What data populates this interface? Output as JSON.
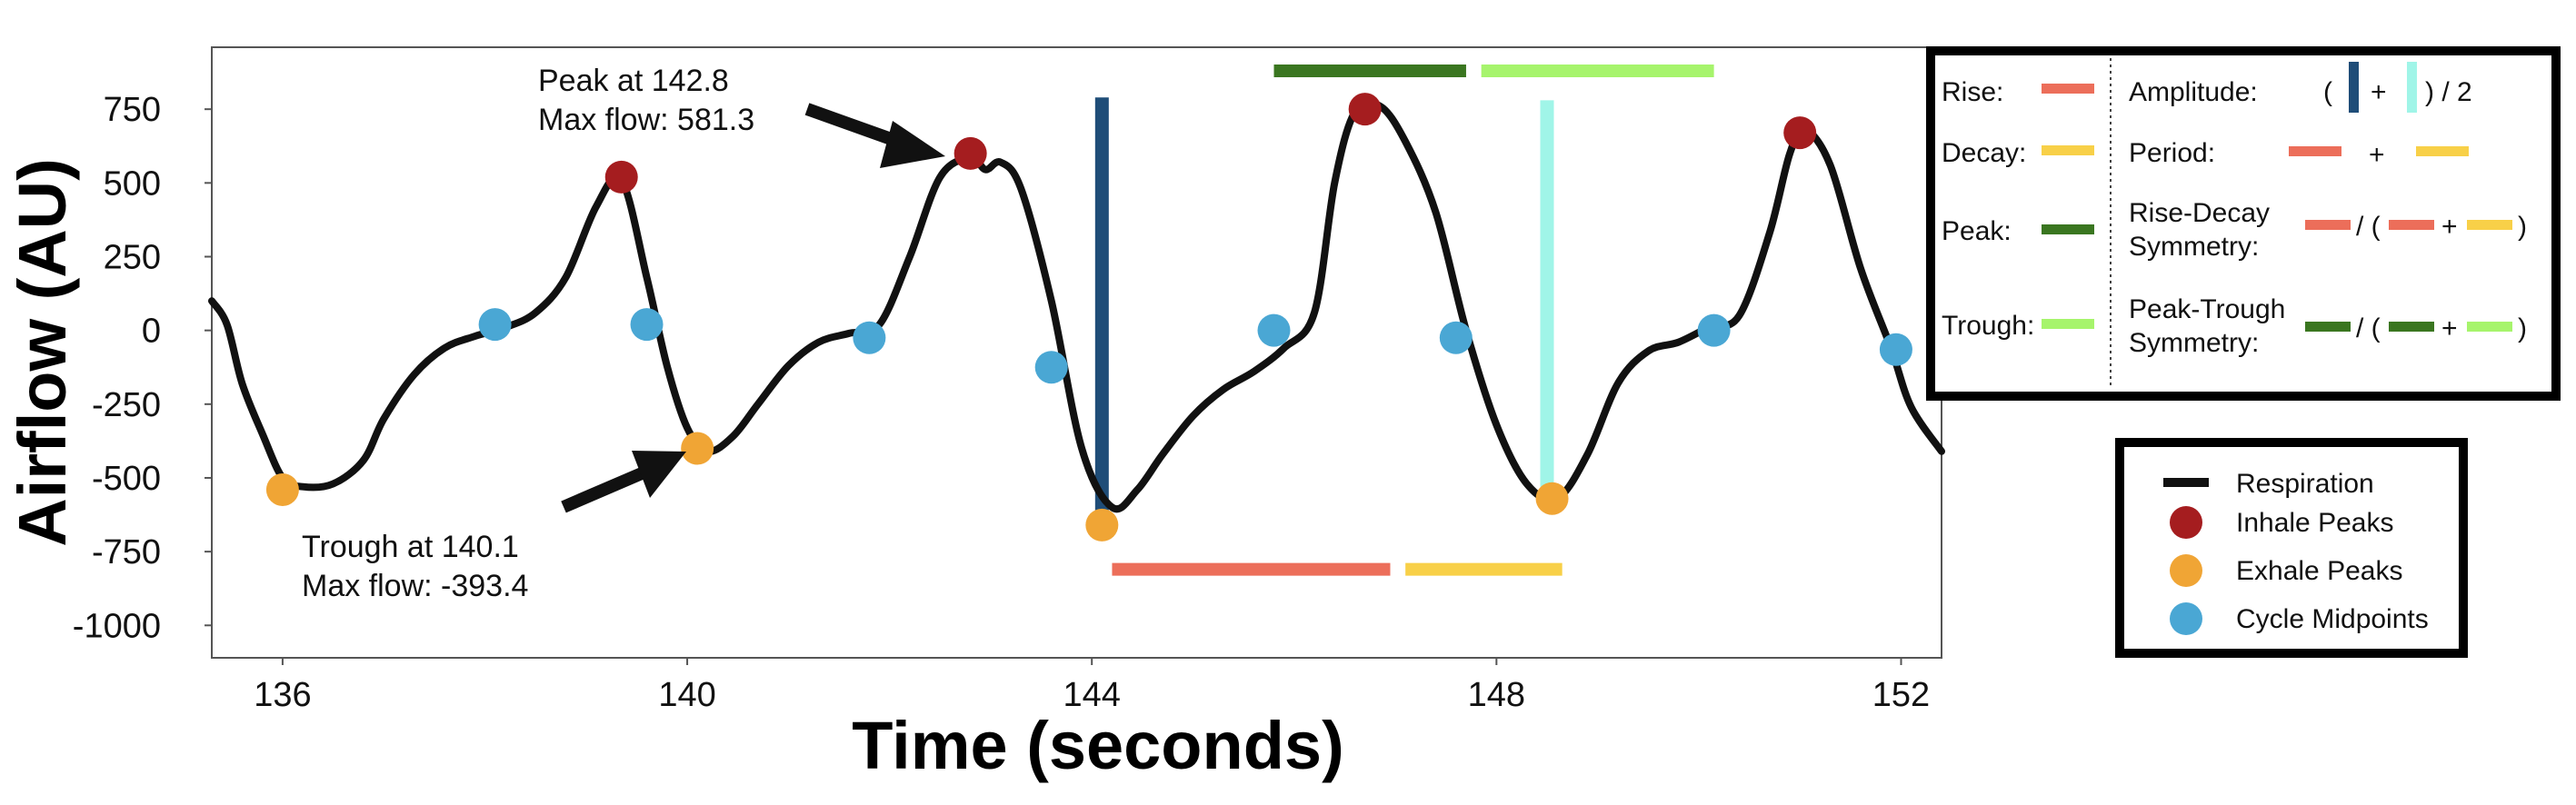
{
  "chart_data": {
    "type": "line",
    "xlabel": "Time (seconds)",
    "ylabel": "Airflow (AU)",
    "xlim": [
      135.3,
      152.4
    ],
    "ylim": [
      -1110,
      960
    ],
    "x_ticks": [
      136,
      140,
      144,
      148,
      152
    ],
    "y_ticks": [
      750,
      500,
      250,
      0,
      -250,
      -500,
      -750,
      -1000
    ],
    "grid": false,
    "series": [
      {
        "name": "Respiration",
        "color": "#111111",
        "points": [
          [
            135.3,
            100
          ],
          [
            135.45,
            20
          ],
          [
            135.6,
            -180
          ],
          [
            135.8,
            -350
          ],
          [
            136.0,
            -500
          ],
          [
            136.2,
            -530
          ],
          [
            136.5,
            -520
          ],
          [
            136.8,
            -440
          ],
          [
            137.0,
            -300
          ],
          [
            137.3,
            -150
          ],
          [
            137.6,
            -60
          ],
          [
            137.9,
            -20
          ],
          [
            138.2,
            10
          ],
          [
            138.5,
            60
          ],
          [
            138.8,
            180
          ],
          [
            139.1,
            420
          ],
          [
            139.35,
            510
          ],
          [
            139.6,
            180
          ],
          [
            139.8,
            -120
          ],
          [
            140.0,
            -330
          ],
          [
            140.2,
            -410
          ],
          [
            140.45,
            -360
          ],
          [
            140.7,
            -250
          ],
          [
            141.0,
            -120
          ],
          [
            141.3,
            -40
          ],
          [
            141.6,
            -10
          ],
          [
            141.9,
            20
          ],
          [
            142.2,
            250
          ],
          [
            142.5,
            520
          ],
          [
            142.8,
            585
          ],
          [
            142.95,
            545
          ],
          [
            143.1,
            570
          ],
          [
            143.3,
            480
          ],
          [
            143.6,
            100
          ],
          [
            143.9,
            -400
          ],
          [
            144.2,
            -600
          ],
          [
            144.45,
            -540
          ],
          [
            144.7,
            -420
          ],
          [
            145.0,
            -290
          ],
          [
            145.3,
            -200
          ],
          [
            145.6,
            -140
          ],
          [
            145.9,
            -60
          ],
          [
            146.2,
            60
          ],
          [
            146.4,
            500
          ],
          [
            146.6,
            740
          ],
          [
            146.85,
            760
          ],
          [
            147.1,
            640
          ],
          [
            147.4,
            400
          ],
          [
            147.7,
            0
          ],
          [
            148.0,
            -320
          ],
          [
            148.3,
            -520
          ],
          [
            148.6,
            -570
          ],
          [
            148.9,
            -420
          ],
          [
            149.2,
            -180
          ],
          [
            149.5,
            -70
          ],
          [
            149.8,
            -40
          ],
          [
            150.1,
            10
          ],
          [
            150.4,
            50
          ],
          [
            150.7,
            330
          ],
          [
            150.9,
            600
          ],
          [
            151.05,
            680
          ],
          [
            151.3,
            560
          ],
          [
            151.6,
            210
          ],
          [
            151.9,
            -60
          ],
          [
            152.1,
            -260
          ],
          [
            152.4,
            -410
          ]
        ]
      },
      {
        "name": "Inhale Peaks",
        "color": "#a51d1f",
        "points": [
          [
            139.35,
            520
          ],
          [
            142.8,
            600
          ],
          [
            146.7,
            750
          ],
          [
            151.0,
            670
          ]
        ]
      },
      {
        "name": "Exhale Peaks",
        "color": "#f0a535",
        "points": [
          [
            136.0,
            -540
          ],
          [
            140.1,
            -400
          ],
          [
            144.1,
            -660
          ],
          [
            148.55,
            -570
          ]
        ]
      },
      {
        "name": "Cycle Midpoints",
        "color": "#4aa7d4",
        "points": [
          [
            138.1,
            20
          ],
          [
            139.6,
            20
          ],
          [
            141.8,
            -25
          ],
          [
            143.6,
            -125
          ],
          [
            145.8,
            0
          ],
          [
            147.6,
            -25
          ],
          [
            150.15,
            0
          ],
          [
            151.95,
            -65
          ]
        ]
      }
    ],
    "segments": [
      {
        "name": "Amplitude",
        "color": "#1f4d78",
        "x1": 144.1,
        "y1": 790,
        "x2": 144.1,
        "y2": -610
      },
      {
        "name": "Amplitude",
        "color": "#a0f5e8",
        "x1": 148.5,
        "y1": 780,
        "x2": 148.5,
        "y2": -530
      },
      {
        "name": "Rise",
        "color": "#ec6e5a",
        "x1": 144.2,
        "y1": -810,
        "x2": 146.95,
        "y2": -810
      },
      {
        "name": "Decay",
        "color": "#f8d048",
        "x1": 147.1,
        "y1": -810,
        "x2": 148.65,
        "y2": -810
      },
      {
        "name": "Peak",
        "color": "#3a7620",
        "x1": 145.8,
        "y1": 880,
        "x2": 147.7,
        "y2": 880
      },
      {
        "name": "Trough",
        "color": "#a6f46c",
        "x1": 147.85,
        "y1": 880,
        "x2": 150.15,
        "y2": 880
      }
    ],
    "annotations": [
      {
        "lines": [
          "Peak at 142.8",
          "Max flow: 581.3"
        ]
      },
      {
        "lines": [
          "Trough at 140.1",
          "Max flow: -393.4"
        ]
      }
    ]
  },
  "legend_metrics": {
    "rise": "Rise:",
    "decay": "Decay:",
    "peak": "Peak:",
    "trough": "Trough:",
    "amplitude": "Amplitude:",
    "period": "Period:",
    "rise_decay_symmetry": [
      "Rise-Decay",
      "Symmetry:"
    ],
    "peak_trough_symmetry": [
      "Peak-Trough",
      "Symmetry:"
    ],
    "sym": {
      "open": "(",
      "plus": "+",
      "close_half": ") / 2",
      "div_open": "/ (",
      "close": ")"
    }
  },
  "legend_series": [
    "Respiration",
    "Inhale Peaks",
    "Exhale Peaks",
    "Cycle Midpoints"
  ],
  "colors": {
    "rise": "#ec6e5a",
    "decay": "#f8d048",
    "peak": "#3a7620",
    "trough": "#a6f46c",
    "amp_dark": "#1f4d78",
    "amp_light": "#a0f5e8"
  }
}
